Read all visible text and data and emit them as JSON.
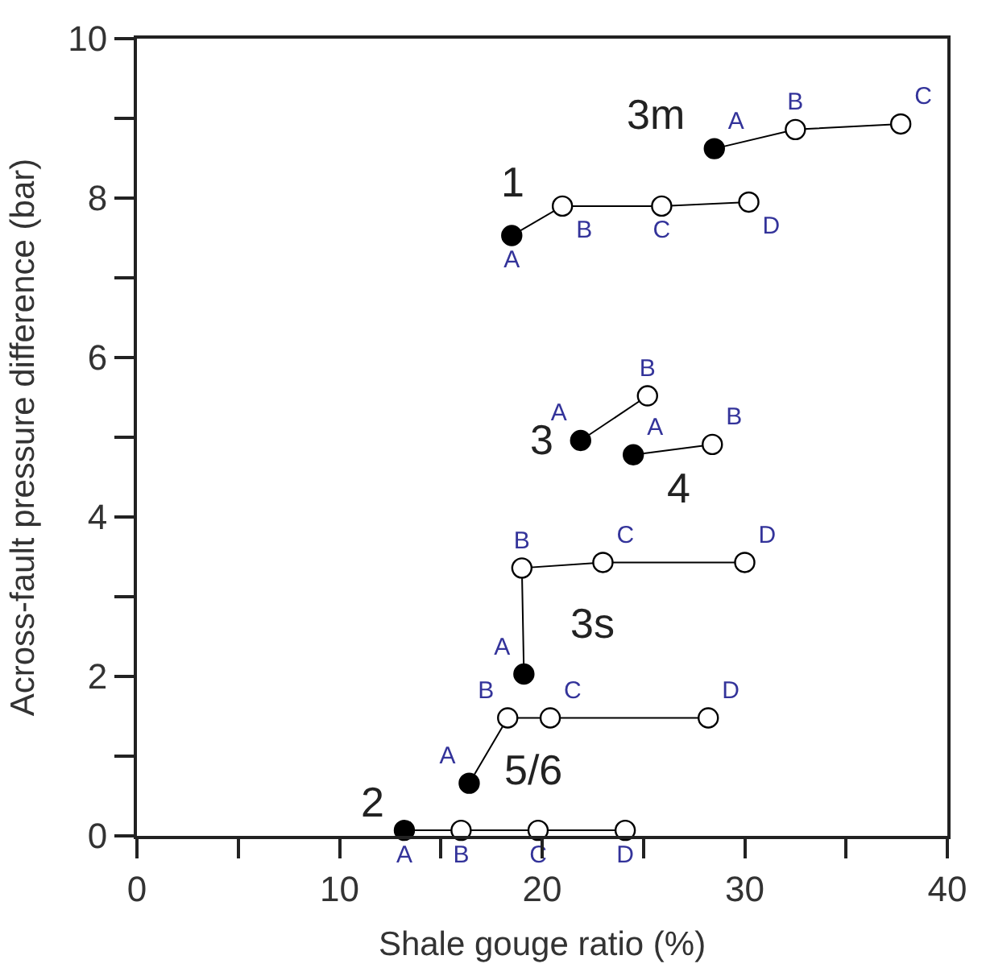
{
  "chart_data": {
    "type": "line",
    "xlabel": "Shale gouge ratio (%)",
    "ylabel": "Across-fault pressure difference (bar)",
    "xlim": [
      0,
      40
    ],
    "ylim": [
      0,
      10
    ],
    "xticks": [
      0,
      {
        "value": 5,
        "label": null
      },
      10,
      {
        "value": 15,
        "label": null
      },
      20,
      {
        "value": 25,
        "label": null
      },
      30,
      {
        "value": 35,
        "label": null
      },
      40
    ],
    "yticks": [
      0,
      {
        "value": 1,
        "label": null
      },
      2,
      {
        "value": 3,
        "label": null
      },
      4,
      {
        "value": 5,
        "label": null
      },
      6,
      {
        "value": 7,
        "label": null
      },
      8,
      {
        "value": 9,
        "label": null
      },
      10
    ],
    "legend": false,
    "marker": "circle",
    "line_style": "solid",
    "series": [
      {
        "name": "3m",
        "color": "#000000",
        "x": [
          28.5,
          32.5,
          37.7
        ],
        "values": [
          8.62,
          8.86,
          8.93
        ],
        "colors": [
          "#000000",
          "#ffffff",
          "#ffffff"
        ],
        "value_labels": [
          "A",
          "B",
          "C"
        ]
      },
      {
        "name": "1",
        "color": "#000000",
        "x": [
          18.5,
          21.0,
          25.9,
          30.2
        ],
        "values": [
          7.53,
          7.9,
          7.9,
          7.95
        ],
        "colors": [
          "#000000",
          "#ffffff",
          "#ffffff",
          "#ffffff"
        ],
        "value_labels": [
          "A",
          "B",
          "C",
          "D"
        ]
      },
      {
        "name": "3",
        "color": "#000000",
        "x": [
          21.9,
          25.2
        ],
        "values": [
          4.96,
          5.52
        ],
        "colors": [
          "#000000",
          "#ffffff"
        ],
        "value_labels": [
          "A",
          "B"
        ]
      },
      {
        "name": "4",
        "color": "#000000",
        "x": [
          24.5,
          28.4
        ],
        "values": [
          4.78,
          4.91
        ],
        "colors": [
          "#000000",
          "#ffffff"
        ],
        "value_labels": [
          "A",
          "B"
        ]
      },
      {
        "name": "3s",
        "color": "#000000",
        "x": [
          19.1,
          19.0,
          23.0,
          30.0
        ],
        "values": [
          2.03,
          3.36,
          3.43,
          3.43
        ],
        "colors": [
          "#000000",
          "#ffffff",
          "#ffffff",
          "#ffffff"
        ],
        "value_labels": [
          "A",
          "B",
          "C",
          "D"
        ]
      },
      {
        "name": "5/6",
        "color": "#000000",
        "x": [
          16.4,
          18.3,
          20.4,
          28.2
        ],
        "values": [
          0.66,
          1.48,
          1.48,
          1.48
        ],
        "colors": [
          "#000000",
          "#ffffff",
          "#ffffff",
          "#ffffff"
        ],
        "value_labels": [
          "A",
          "B",
          "C",
          "D"
        ]
      },
      {
        "name": "2",
        "color": "#000000",
        "x": [
          13.2,
          16.0,
          19.8,
          24.1
        ],
        "values": [
          0.07,
          0.07,
          0.07,
          0.07
        ],
        "colors": [
          "#000000",
          "#ffffff",
          "#ffffff",
          "#ffffff"
        ],
        "value_labels": [
          "A",
          "B",
          "C",
          "D"
        ]
      }
    ]
  }
}
